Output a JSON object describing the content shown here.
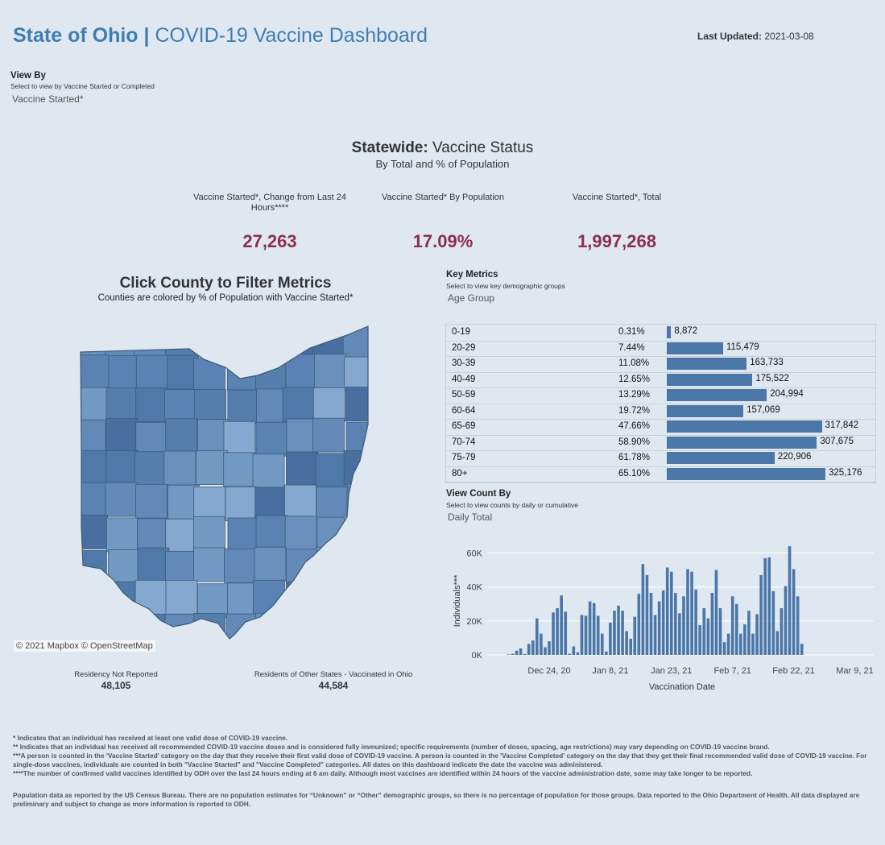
{
  "header": {
    "title_bold": "State of Ohio |",
    "title_rest": " COVID-19 Vaccine Dashboard",
    "updated_label": "Last Updated:",
    "updated_value": " 2021-03-08"
  },
  "view_by": {
    "heading": "View By",
    "subtitle": "Select to view by Vaccine Started or Completed",
    "value": "Vaccine Started*"
  },
  "statewide": {
    "title_bold": "Statewide:",
    "title_rest": " Vaccine Status",
    "subtitle": "By Total and % of Population",
    "kpis": [
      {
        "label": "Vaccine Started*, Change from Last 24 Hours****",
        "value": "27,263"
      },
      {
        "label": "Vaccine Started* By Population",
        "value": "17.09%"
      },
      {
        "label": "Vaccine Started*, Total",
        "value": "1,997,268"
      }
    ]
  },
  "map": {
    "title": "Click County to Filter Metrics",
    "subtitle": "Counties are colored by % of Population with Vaccine Started*",
    "attribution": "© 2021 Mapbox © OpenStreetMap",
    "residency_not_reported_label": "Residency Not Reported",
    "residency_not_reported_value": "48,105",
    "other_states_label": "Residents of Other States - Vaccinated in Ohio",
    "other_states_value": "44,584"
  },
  "key_metrics": {
    "heading": "Key Metrics",
    "subtitle": "Select to view key demographic groups",
    "value": "Age Group",
    "rows": [
      {
        "group": "0-19",
        "pct": "0.31%",
        "value": 8872,
        "label": "8,872"
      },
      {
        "group": "20-29",
        "pct": "7.44%",
        "value": 115479,
        "label": "115,479"
      },
      {
        "group": "30-39",
        "pct": "11.08%",
        "value": 163733,
        "label": "163,733"
      },
      {
        "group": "40-49",
        "pct": "12.65%",
        "value": 175522,
        "label": "175,522"
      },
      {
        "group": "50-59",
        "pct": "13.29%",
        "value": 204994,
        "label": "204,994"
      },
      {
        "group": "60-64",
        "pct": "19.72%",
        "value": 157069,
        "label": "157,069"
      },
      {
        "group": "65-69",
        "pct": "47.66%",
        "value": 317842,
        "label": "317,842"
      },
      {
        "group": "70-74",
        "pct": "58.90%",
        "value": 307675,
        "label": "307,675"
      },
      {
        "group": "75-79",
        "pct": "61.78%",
        "value": 220906,
        "label": "220,906"
      },
      {
        "group": "80+",
        "pct": "65.10%",
        "value": 325176,
        "label": "325,176"
      }
    ]
  },
  "view_count": {
    "heading": "View Count By",
    "subtitle": "Select to view counts by daily or cumulative",
    "value": "Daily Total"
  },
  "chart_data": {
    "type": "bar",
    "title": "",
    "xlabel": "Vaccination Date",
    "ylabel": "Individuals***",
    "ylim": [
      0,
      65000
    ],
    "yticks": [
      "0K",
      "20K",
      "40K",
      "60K"
    ],
    "ytick_values": [
      0,
      20000,
      40000,
      60000
    ],
    "xticks": [
      "Dec 24, 20",
      "Jan 8, 21",
      "Jan 23, 21",
      "Feb 7, 21",
      "Feb 22, 21",
      "Mar 9, 21"
    ],
    "xtick_dates": [
      "2020-12-24",
      "2021-01-08",
      "2021-01-23",
      "2021-02-07",
      "2021-02-22",
      "2021-03-09"
    ],
    "x_start": "2020-12-14",
    "grid": true,
    "color": "#4a76a8",
    "values": [
      300,
      700,
      2500,
      3800,
      600,
      6500,
      8500,
      21500,
      12500,
      4500,
      8000,
      25000,
      27500,
      35000,
      25500,
      700,
      5000,
      1500,
      23500,
      23000,
      31500,
      30500,
      23000,
      12500,
      2000,
      19000,
      26000,
      29000,
      26000,
      14000,
      9500,
      22500,
      36000,
      53500,
      47000,
      36500,
      23500,
      31500,
      38000,
      51500,
      49000,
      36500,
      24500,
      34500,
      50500,
      49000,
      38500,
      17500,
      27500,
      21500,
      36500,
      50000,
      27500,
      7500,
      12500,
      34500,
      30000,
      12500,
      18000,
      26000,
      12500,
      24000,
      47000,
      57000,
      57500,
      37500,
      14000,
      27500,
      40500,
      64000,
      50500,
      34500,
      6500
    ]
  },
  "footnotes": {
    "f1": "* Indicates that an individual has received at least one valid dose of COVID-19 vaccine.",
    "f2": "** Indicates that an individual has received all recommended COVID-19 vaccine doses and is considered fully immunized; specific requirements (number of doses, spacing, age restrictions) may vary depending on COVID-19 vaccine brand.",
    "f3": "***A person is counted in the 'Vaccine Started' category on the day that they receive their first valid dose of COVID-19 vaccine.  A person is counted in the 'Vaccine Completed' category on the day that they get their final recommended valid dose of COVID-19 vaccine. For single-dose vaccines, individuals are counted in both \"Vaccine Started\" and \"Vaccine Completed\" categories. All dates on this dashboard indicate the date the vaccine was administered.",
    "f4": "****The number of confirmed valid vaccines identified by ODH over the last 24 hours ending at 6 am daily. Although most vaccines are identified within 24 hours of the vaccine administration date, some may take longer to be reported.",
    "f5": "Population data as reported by the US Census Bureau. There are no population estimates for “Unknown” or “Other” demographic groups, so there is no percentage of population for those groups.  Data reported to the Ohio Department of Health.  All data displayed are preliminary and subject to change as more information is reported to ODH."
  }
}
